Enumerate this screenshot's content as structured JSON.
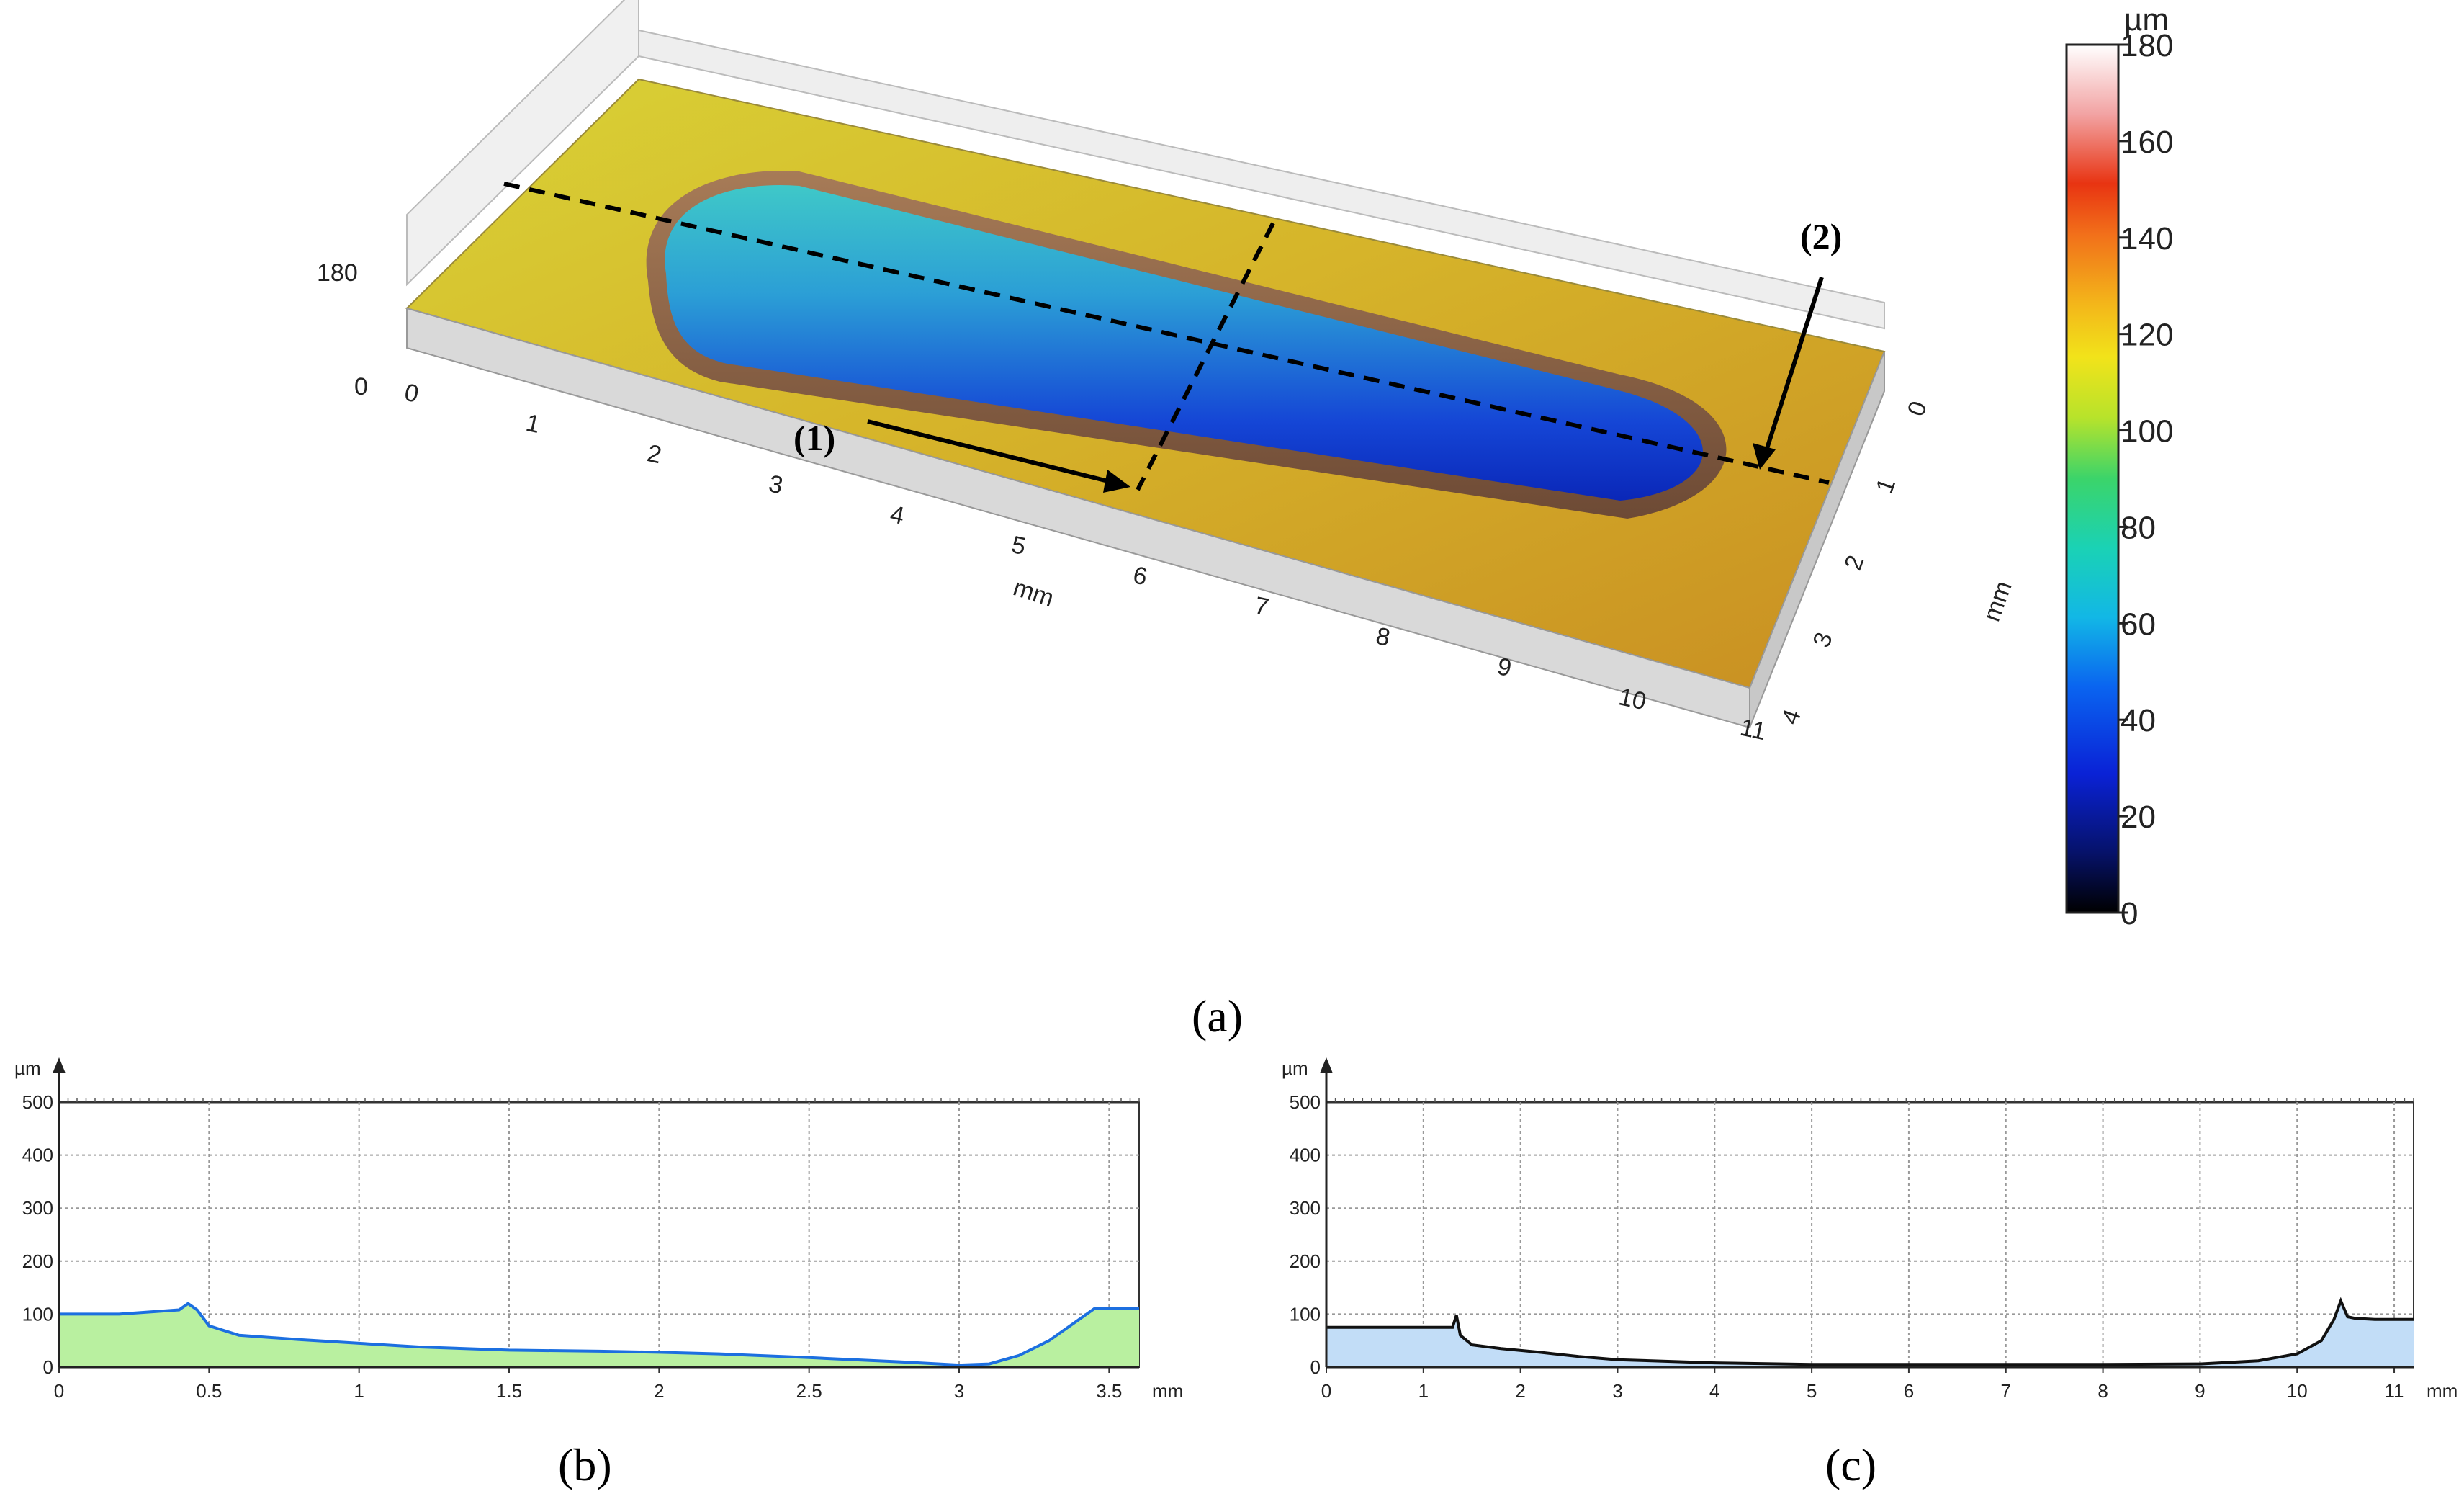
{
  "chart_data": [
    {
      "panel": "(a)",
      "type": "heatmap",
      "x_unit": "mm",
      "y_unit": "mm",
      "z_ticks": [
        "0",
        "180"
      ],
      "x_ticks": [
        "0",
        "1",
        "2",
        "3",
        "4",
        "5",
        "6",
        "7",
        "8",
        "9",
        "10",
        "11"
      ],
      "y_ticks": [
        "0",
        "1",
        "2",
        "3",
        "4"
      ],
      "xlim": [
        0,
        11
      ],
      "ylim": [
        0,
        4
      ],
      "colorbar": {
        "unit": "µm",
        "ticks": [
          "0",
          "20",
          "40",
          "60",
          "80",
          "100",
          "120",
          "140",
          "160",
          "180"
        ],
        "range": [
          0,
          180
        ]
      },
      "annotations": [
        "(1)",
        "(2)"
      ],
      "colors": {
        "surface": "#d2b22a",
        "scar_deep": "#0b2fc9",
        "scar_mid": "#2fa6d8",
        "rim": "#8b5a3c"
      }
    },
    {
      "panel": "(b)",
      "type": "area",
      "ylabel": "µm",
      "x_unit": "mm",
      "xlim": [
        0,
        3.6
      ],
      "ylim": [
        0,
        500
      ],
      "x_ticks": [
        "0",
        "0.5",
        "1",
        "1.5",
        "2",
        "2.5",
        "3",
        "3.5"
      ],
      "y_ticks": [
        "0",
        "100",
        "200",
        "300",
        "400",
        "500"
      ],
      "grid": true,
      "colors": {
        "fill": "#b9f0a0",
        "line": "#1c6fe0"
      },
      "x": [
        0,
        0.2,
        0.4,
        0.43,
        0.46,
        0.5,
        0.6,
        0.8,
        1.0,
        1.2,
        1.5,
        1.8,
        2.0,
        2.2,
        2.5,
        2.8,
        3.0,
        3.1,
        3.2,
        3.3,
        3.4,
        3.45,
        3.6
      ],
      "values": [
        100,
        100,
        108,
        120,
        108,
        78,
        60,
        52,
        45,
        38,
        32,
        30,
        28,
        25,
        18,
        10,
        4,
        6,
        22,
        50,
        90,
        110,
        110
      ]
    },
    {
      "panel": "(c)",
      "type": "area",
      "ylabel": "µm",
      "x_unit": "mm",
      "xlim": [
        0,
        11.2
      ],
      "ylim": [
        0,
        500
      ],
      "x_ticks": [
        "0",
        "1",
        "2",
        "3",
        "4",
        "5",
        "6",
        "7",
        "8",
        "9",
        "10",
        "11"
      ],
      "y_ticks": [
        "0",
        "100",
        "200",
        "300",
        "400",
        "500"
      ],
      "grid": true,
      "colors": {
        "fill": "#c2ddf7",
        "line": "#111111"
      },
      "x": [
        0,
        1.2,
        1.3,
        1.34,
        1.38,
        1.5,
        1.8,
        2.2,
        2.6,
        3.0,
        4.0,
        5.0,
        6.0,
        7.0,
        8.0,
        9.0,
        9.6,
        10.0,
        10.25,
        10.38,
        10.45,
        10.52,
        10.6,
        10.8,
        11.2
      ],
      "values": [
        75,
        75,
        75,
        98,
        60,
        42,
        35,
        28,
        20,
        14,
        8,
        5,
        5,
        5,
        5,
        6,
        12,
        25,
        50,
        90,
        125,
        95,
        92,
        90,
        90
      ]
    }
  ],
  "captions": {
    "a": "(a)",
    "b": "(b)",
    "c": "(c)"
  }
}
